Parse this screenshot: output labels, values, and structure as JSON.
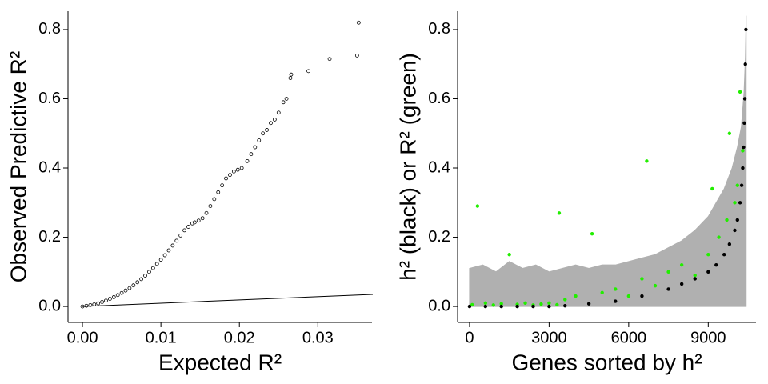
{
  "chart_data": [
    {
      "type": "scatter",
      "xlabel": "Expected R²",
      "ylabel": "Observed Predictive R²",
      "xlim": [
        -0.00184,
        0.0369
      ],
      "ylim": [
        -0.046,
        0.853
      ],
      "xticks": [
        {
          "value": 0,
          "label": "0.00"
        },
        {
          "value": 0.01,
          "label": "0.01"
        },
        {
          "value": 0.02,
          "label": "0.02"
        },
        {
          "value": 0.03,
          "label": "0.03"
        }
      ],
      "yticks": [
        {
          "value": 0,
          "label": "0.0"
        },
        0.2,
        0.4,
        0.6,
        0.8
      ],
      "series": [
        {
          "mark": "points",
          "color": "#000000",
          "x": [
            0,
            0.0005,
            0.001,
            0.0015,
            0.002,
            0.0025,
            0.003,
            0.0035,
            0.004,
            0.0045,
            0.005,
            0.0055,
            0.006,
            0.0065,
            0.007,
            0.0075,
            0.008,
            0.0085,
            0.009,
            0.0095,
            0.01,
            0.0105,
            0.011,
            0.0115,
            0.012,
            0.0125,
            0.013,
            0.0135,
            0.014,
            0.0143,
            0.0148,
            0.0153,
            0.0158,
            0.0163,
            0.0168,
            0.0173,
            0.0178,
            0.0183,
            0.0188,
            0.0193,
            0.0198,
            0.0203,
            0.021,
            0.0215,
            0.022,
            0.0225,
            0.023,
            0.0235,
            0.024,
            0.0245,
            0.025,
            0.0256,
            0.026,
            0.0265,
            0.0266,
            0.0288,
            0.0315,
            0.035,
            0.0352
          ],
          "values": [
            0,
            0.002,
            0.004,
            0.006,
            0.009,
            0.013,
            0.017,
            0.022,
            0.027,
            0.033,
            0.039,
            0.046,
            0.053,
            0.061,
            0.07,
            0.079,
            0.089,
            0.1,
            0.111,
            0.123,
            0.135,
            0.148,
            0.162,
            0.176,
            0.19,
            0.205,
            0.22,
            0.23,
            0.24,
            0.243,
            0.248,
            0.255,
            0.27,
            0.29,
            0.31,
            0.33,
            0.35,
            0.37,
            0.38,
            0.39,
            0.395,
            0.4,
            0.42,
            0.44,
            0.46,
            0.48,
            0.5,
            0.51,
            0.53,
            0.54,
            0.56,
            0.59,
            0.6,
            0.66,
            0.67,
            0.68,
            0.715,
            0.725,
            0.82
          ]
        },
        {
          "mark": "line",
          "color": "#000000",
          "x": [
            0,
            0.037
          ],
          "values": [
            0,
            0.035
          ]
        }
      ]
    },
    {
      "type": "scatter",
      "xlabel": "Genes sorted by h²",
      "ylabel": "h² (black) or  R² (green)",
      "xlim": [
        -450,
        10800
      ],
      "ylim": [
        -0.046,
        0.853
      ],
      "xticks": [
        0,
        3000,
        6000,
        9000
      ],
      "yticks": [
        {
          "value": 0,
          "label": "0.0"
        },
        0.2,
        0.4,
        0.6,
        0.8
      ],
      "series": [
        {
          "mark": "area",
          "color": "#b0b0b0",
          "x": [
            0,
            500,
            1000,
            1500,
            2000,
            2500,
            3000,
            3500,
            4000,
            4500,
            5000,
            5500,
            6000,
            6500,
            7000,
            7500,
            8000,
            8500,
            9000,
            9300,
            9600,
            9900,
            10100,
            10250,
            10350,
            10400,
            10430
          ],
          "values": [
            0.11,
            0.12,
            0.1,
            0.13,
            0.11,
            0.12,
            0.1,
            0.11,
            0.12,
            0.11,
            0.12,
            0.12,
            0.13,
            0.14,
            0.15,
            0.17,
            0.19,
            0.22,
            0.26,
            0.3,
            0.34,
            0.4,
            0.46,
            0.52,
            0.62,
            0.72,
            0.84
          ]
        },
        {
          "mark": "points",
          "color": "#22ee00",
          "x": [
            100,
            300,
            600,
            900,
            1200,
            1500,
            1800,
            2100,
            2400,
            2700,
            3000,
            3300,
            3380,
            3600,
            4000,
            4620,
            5000,
            5500,
            6000,
            6500,
            6680,
            7000,
            7500,
            8000,
            8500,
            9000,
            9150,
            9400,
            9700,
            9800,
            10000,
            10100,
            10200,
            10300
          ],
          "values": [
            0.005,
            0.29,
            0.01,
            0.004,
            0.008,
            0.15,
            0.006,
            0.01,
            0.004,
            0.007,
            0.01,
            0.005,
            0.27,
            0.02,
            0.03,
            0.21,
            0.04,
            0.05,
            0.03,
            0.08,
            0.42,
            0.06,
            0.1,
            0.12,
            0.09,
            0.15,
            0.34,
            0.2,
            0.25,
            0.5,
            0.3,
            0.35,
            0.62,
            0.45
          ]
        },
        {
          "mark": "points",
          "color": "#000000",
          "x": [
            0,
            600,
            1200,
            1800,
            2400,
            3000,
            3600,
            4500,
            5500,
            6500,
            7500,
            8000,
            8500,
            9000,
            9300,
            9600,
            9800,
            10000,
            10100,
            10200,
            10260,
            10300,
            10330,
            10360,
            10380,
            10400,
            10420
          ],
          "values": [
            0,
            0,
            0,
            0,
            0,
            0,
            0.002,
            0.008,
            0.015,
            0.03,
            0.05,
            0.065,
            0.08,
            0.1,
            0.12,
            0.15,
            0.18,
            0.22,
            0.25,
            0.3,
            0.35,
            0.4,
            0.46,
            0.53,
            0.6,
            0.7,
            0.8
          ]
        }
      ]
    }
  ]
}
